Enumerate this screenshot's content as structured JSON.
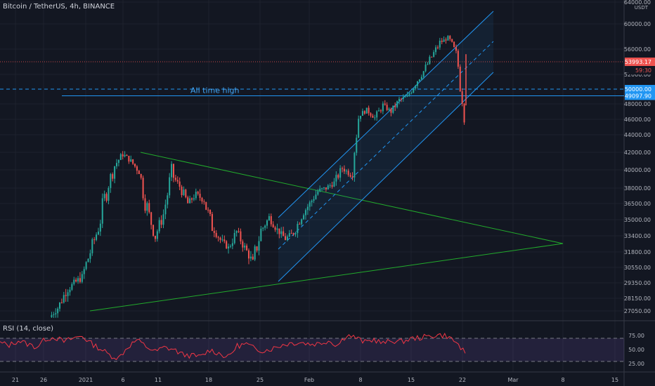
{
  "header": {
    "title": "Bitcoin / TetherUS, 4h, BINANCE"
  },
  "axis": {
    "currency": "USDT"
  },
  "chart_data": {
    "type": "line",
    "title": "Bitcoin / TetherUS, 4h, BINANCE",
    "x_ticks": [
      "21",
      "26",
      "2021",
      "6",
      "11",
      "18",
      "25",
      "Feb",
      "8",
      "15",
      "22",
      "Mar",
      "8",
      "15"
    ],
    "y_ticks": [
      "64000.00",
      "60000.00",
      "56000.00",
      "52000.00",
      "48000.00",
      "46000.00",
      "44000.00",
      "42000.00",
      "40000.00",
      "38000.00",
      "36500.00",
      "35000.00",
      "33400.00",
      "31800.00",
      "30550.00",
      "29350.00",
      "28150.00",
      "27050.00"
    ],
    "ylim": [
      26500,
      64000
    ],
    "series": [
      {
        "values": [
          26500,
          27300,
          28700,
          29300,
          29800,
          31800,
          34200,
          37800,
          40500,
          41800,
          41000,
          39800,
          36000,
          33400,
          35500,
          39500,
          38200,
          36500,
          37400,
          36800,
          34300,
          33000,
          32200,
          33800,
          32200,
          30900,
          33900,
          35200,
          34000,
          33100,
          33700,
          35400,
          36500,
          37700,
          38000,
          38600,
          40200,
          39500,
          46500,
          47200,
          46200,
          47800,
          47000,
          48500,
          49000,
          50800,
          52500,
          54800,
          57000,
          57800,
          55200,
          47800
        ]
      }
    ],
    "current_price": {
      "label": "53993.17",
      "value": 53993.17,
      "countdown": "59:30"
    },
    "horizontal_levels": [
      {
        "label": "50000.00",
        "value": 50000,
        "style": "dashed"
      },
      {
        "label": "49097.90",
        "value": 49097.9,
        "style": "solid"
      }
    ],
    "annotations": [
      {
        "text": "All time high"
      }
    ],
    "rsi": {
      "label": "RSI (14, close)",
      "ticks": [
        "75.00",
        "50.00",
        "25.00"
      ],
      "upper": 70,
      "lower": 30,
      "values": [
        62,
        58,
        66,
        60,
        55,
        69,
        72,
        64,
        70,
        74,
        61,
        52,
        41,
        36,
        55,
        67,
        56,
        47,
        54,
        51,
        42,
        40,
        38,
        50,
        44,
        37,
        57,
        60,
        51,
        49,
        53,
        59,
        62,
        63,
        60,
        61,
        66,
        58,
        76,
        71,
        63,
        68,
        61,
        66,
        64,
        69,
        71,
        73,
        76,
        74,
        63,
        44
      ]
    }
  },
  "colors": {
    "background": "#131722",
    "up": "#26a69a",
    "down": "#ef5350",
    "channel": "#2196f3",
    "triangle": "#22ab2c",
    "ath": "#2196f3",
    "rsi": "#f23645",
    "rsi_band": "#7e57c2",
    "grid": "#1e222d",
    "text": "#b2b5be"
  }
}
